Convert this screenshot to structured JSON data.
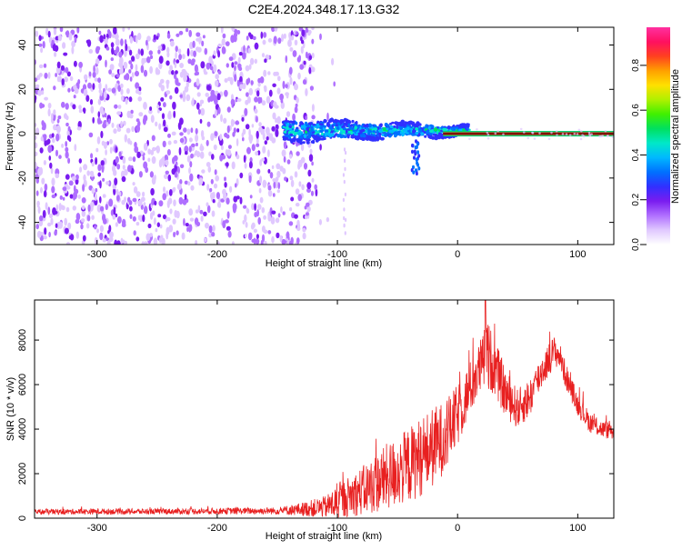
{
  "title": "C2E4.2024.348.17.13.G32",
  "chart_data": [
    {
      "type": "heatmap",
      "name": "spectrogram",
      "xlabel": "Height of straight line (km)",
      "ylabel": "Frequency (Hz)",
      "xlim": [
        -352,
        130
      ],
      "ylim": [
        -50,
        48
      ],
      "xticks": [
        -300,
        -200,
        -100,
        0,
        100
      ],
      "xtick_labels": [
        "-300",
        "-200",
        "-100",
        "0",
        "100"
      ],
      "yticks": [
        -40,
        -20,
        0,
        20,
        40
      ],
      "ytick_labels": [
        "-40",
        "-20",
        "0",
        "20",
        "40"
      ],
      "colorbar": {
        "label": "Normalized spectral amplitude",
        "range": [
          0.0,
          0.97
        ],
        "ticks": [
          0.0,
          0.2,
          0.4,
          0.6,
          0.8
        ],
        "tick_labels": [
          "0.0",
          "0.2",
          "0.4",
          "0.6",
          "0.8"
        ],
        "colors": [
          "#ffffff",
          "#e0c8ff",
          "#b070ff",
          "#7a1cf0",
          "#3030ff",
          "#0070ff",
          "#00b8ff",
          "#00e8c8",
          "#00e060",
          "#40f000",
          "#b0f000",
          "#ffe000",
          "#ffa000",
          "#ff4020",
          "#ff1060",
          "#ff30a0"
        ]
      },
      "regions": [
        {
          "x_range": [
            -352,
            -120
          ],
          "freq_range": [
            -50,
            48
          ],
          "amplitude_range": [
            0.05,
            0.2
          ],
          "description": "noise"
        },
        {
          "x_range": [
            -145,
            10
          ],
          "freq_center": 1.5,
          "freq_halfwidth": 4,
          "amplitude_range": [
            0.2,
            0.5
          ],
          "description": "signal band"
        },
        {
          "x_range": [
            0,
            130
          ],
          "freq_center": 0,
          "amplitude": 0.9,
          "description": "steady line"
        }
      ]
    },
    {
      "type": "line",
      "name": "snr",
      "xlabel": "Height of straight line (km)",
      "ylabel": "SNR (10 * v/v)",
      "xlim": [
        -352,
        130
      ],
      "ylim": [
        0,
        9800
      ],
      "xticks": [
        -300,
        -200,
        -100,
        0,
        100
      ],
      "xtick_labels": [
        "-300",
        "-200",
        "-100",
        "0",
        "100"
      ],
      "yticks": [
        0,
        2000,
        4000,
        6000,
        8000
      ],
      "ytick_labels": [
        "0",
        "2000",
        "4000",
        "6000",
        "8000"
      ],
      "color": "#e82020",
      "envelope": {
        "x": [
          -352,
          -300,
          -250,
          -200,
          -150,
          -130,
          -110,
          -100,
          -90,
          -80,
          -70,
          -60,
          -50,
          -40,
          -30,
          -20,
          -10,
          0,
          10,
          20,
          25,
          30,
          40,
          50,
          60,
          70,
          80,
          85,
          90,
          100,
          110,
          120,
          130
        ],
        "mean": [
          280,
          300,
          300,
          320,
          330,
          400,
          500,
          700,
          1000,
          1200,
          1500,
          1800,
          2100,
          2400,
          2800,
          3200,
          3700,
          4600,
          5800,
          6900,
          7300,
          6900,
          5600,
          4900,
          5400,
          6600,
          7500,
          7300,
          6400,
          5100,
          4300,
          4000,
          3900
        ],
        "spread": [
          120,
          130,
          130,
          140,
          160,
          300,
          500,
          800,
          900,
          1100,
          1300,
          1500,
          1600,
          1700,
          1800,
          1800,
          1600,
          1400,
          1200,
          1300,
          1600,
          1300,
          1100,
          900,
          900,
          800,
          700,
          600,
          600,
          500,
          450,
          400,
          400
        ],
        "peak": {
          "x": 23,
          "y": 9800
        }
      }
    }
  ]
}
